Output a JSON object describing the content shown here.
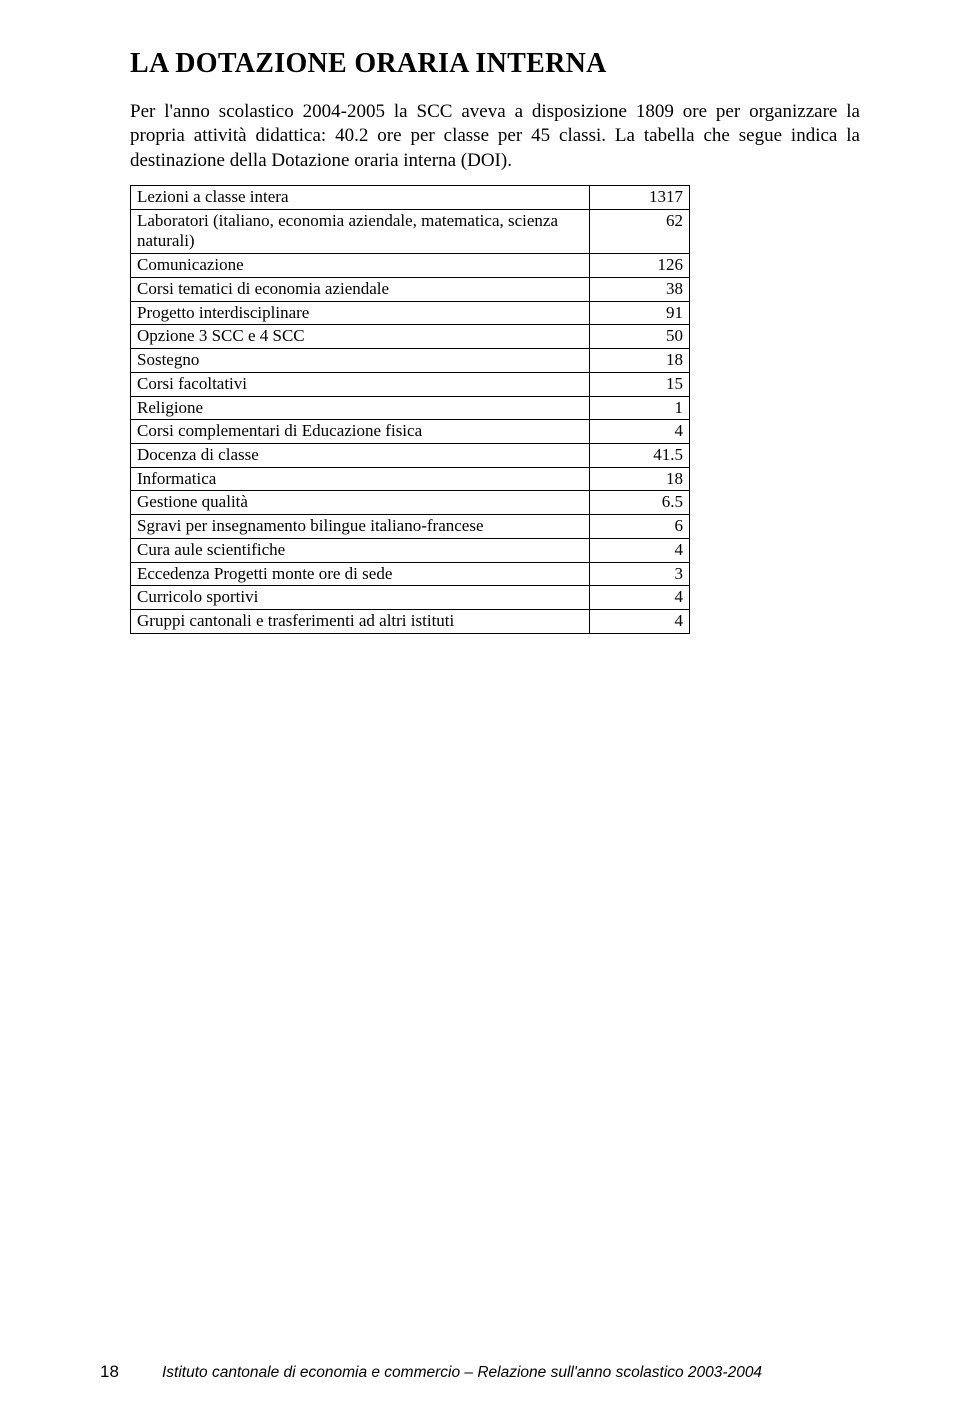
{
  "heading": "LA DOTAZIONE ORARIA INTERNA",
  "paragraph": "Per l'anno scolastico 2004-2005 la SCC aveva a disposizione 1809 ore per organizzare la propria attività didattica: 40.2 ore per classe per 45 classi. La tabella che segue indica la destinazione della Dotazione oraria interna (DOI).",
  "table": {
    "rows": [
      {
        "label": "Lezioni a classe intera",
        "value": "1317"
      },
      {
        "label": "Laboratori (italiano, economia aziendale, matematica, scienza naturali)",
        "value": "62"
      },
      {
        "label": "Comunicazione",
        "value": "126"
      },
      {
        "label": "Corsi tematici di economia aziendale",
        "value": "38"
      },
      {
        "label": "Progetto interdisciplinare",
        "value": "91"
      },
      {
        "label": "Opzione 3 SCC e 4 SCC",
        "value": "50"
      },
      {
        "label": "Sostegno",
        "value": "18"
      },
      {
        "label": "Corsi facoltativi",
        "value": "15"
      },
      {
        "label": "Religione",
        "value": "1"
      },
      {
        "label": "Corsi complementari di Educazione fisica",
        "value": "4"
      },
      {
        "label": "Docenza di classe",
        "value": "41.5"
      },
      {
        "label": "Informatica",
        "value": "18"
      },
      {
        "label": "Gestione qualità",
        "value": "6.5"
      },
      {
        "label": "Sgravi per insegnamento bilingue italiano-francese",
        "value": "6"
      },
      {
        "label": "Cura aule scientifiche",
        "value": "4"
      },
      {
        "label": "Eccedenza Progetti monte ore di sede",
        "value": "3"
      },
      {
        "label": "Curricolo sportivi",
        "value": "4"
      },
      {
        "label": "Gruppi cantonali e trasferimenti ad altri istituti",
        "value": "4"
      }
    ]
  },
  "footer": {
    "page": "18",
    "text": "Istituto cantonale di economia e commercio – Relazione sull'anno scolastico 2003-2004"
  }
}
